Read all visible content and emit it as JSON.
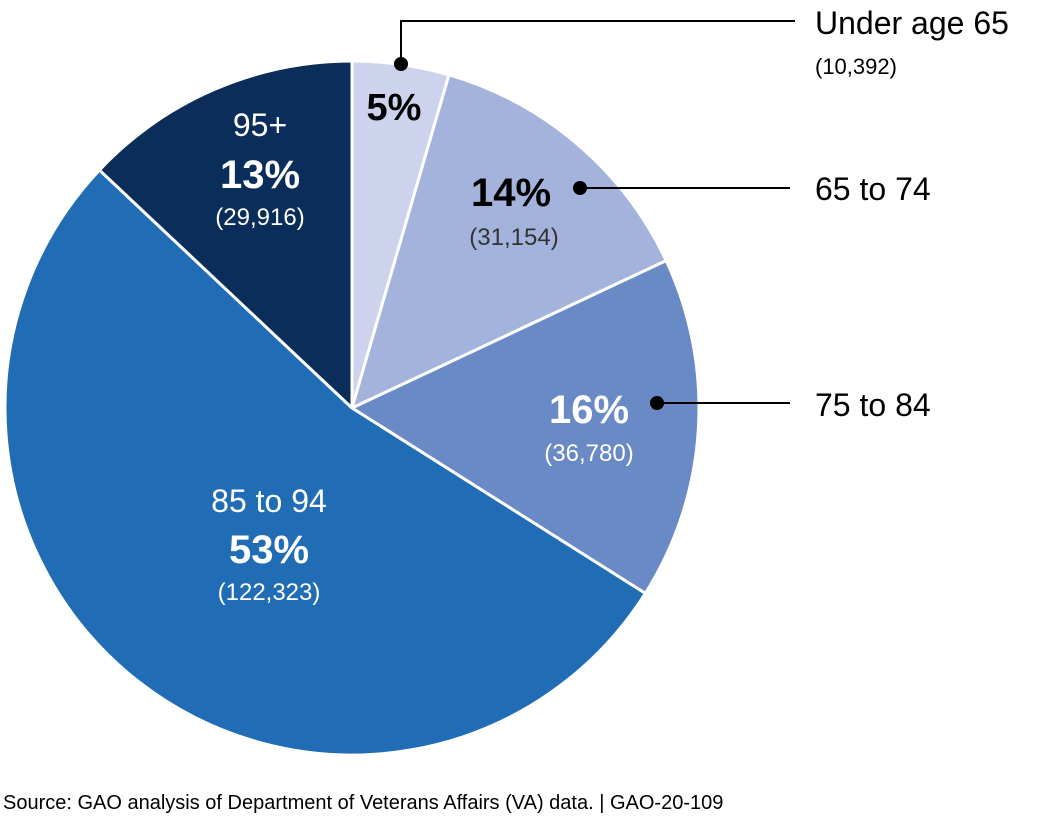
{
  "chart_data": {
    "type": "pie",
    "title": "",
    "start": "top",
    "direction": "clockwise",
    "slices": [
      {
        "label": "Under age 65",
        "value": 10392,
        "percent_label": "5%",
        "count_label": "(10,392)",
        "color": "#cdd3ec",
        "label_placement": "callout",
        "pct_color": "#000000"
      },
      {
        "label": "65 to 74",
        "value": 31154,
        "percent_label": "14%",
        "count_label": "(31,154)",
        "color": "#a3b3dc",
        "label_placement": "callout",
        "pct_color": "#000000"
      },
      {
        "label": "75 to 84",
        "value": 36780,
        "percent_label": "16%",
        "count_label": "(36,780)",
        "color": "#6a8ac6",
        "label_placement": "callout",
        "pct_color": "#ffffff"
      },
      {
        "label": "85 to 94",
        "value": 122323,
        "percent_label": "53%",
        "count_label": "(122,323)",
        "color": "#206cb5",
        "label_placement": "inside",
        "pct_color": "#ffffff"
      },
      {
        "label": "95+",
        "value": 29916,
        "percent_label": "13%",
        "count_label": "(29,916)",
        "color": "#0b2d59",
        "label_placement": "inside",
        "pct_color": "#ffffff"
      }
    ]
  },
  "source": "Source: GAO analysis of Department of Veterans Affairs (VA) data.  |  GAO-20-109"
}
